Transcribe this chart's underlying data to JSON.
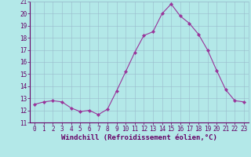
{
  "x": [
    0,
    1,
    2,
    3,
    4,
    5,
    6,
    7,
    8,
    9,
    10,
    11,
    12,
    13,
    14,
    15,
    16,
    17,
    18,
    19,
    20,
    21,
    22,
    23
  ],
  "y": [
    12.5,
    12.7,
    12.8,
    12.7,
    12.2,
    11.9,
    12.0,
    11.65,
    12.1,
    13.6,
    15.2,
    16.8,
    18.2,
    18.5,
    20.0,
    20.8,
    19.8,
    19.2,
    18.3,
    17.0,
    15.3,
    13.7,
    12.8,
    12.7
  ],
  "xlim": [
    -0.5,
    23.5
  ],
  "ylim": [
    11,
    21
  ],
  "yticks": [
    11,
    12,
    13,
    14,
    15,
    16,
    17,
    18,
    19,
    20,
    21
  ],
  "xticks": [
    0,
    1,
    2,
    3,
    4,
    5,
    6,
    7,
    8,
    9,
    10,
    11,
    12,
    13,
    14,
    15,
    16,
    17,
    18,
    19,
    20,
    21,
    22,
    23
  ],
  "xlabel": "Windchill (Refroidissement éolien,°C)",
  "line_color": "#993399",
  "marker_color": "#993399",
  "bg_color": "#b3e8e8",
  "grid_color": "#99bbcc",
  "text_color": "#660066",
  "spine_color": "#660066",
  "tick_fontsize": 5.5,
  "xlabel_fontsize": 6.5
}
